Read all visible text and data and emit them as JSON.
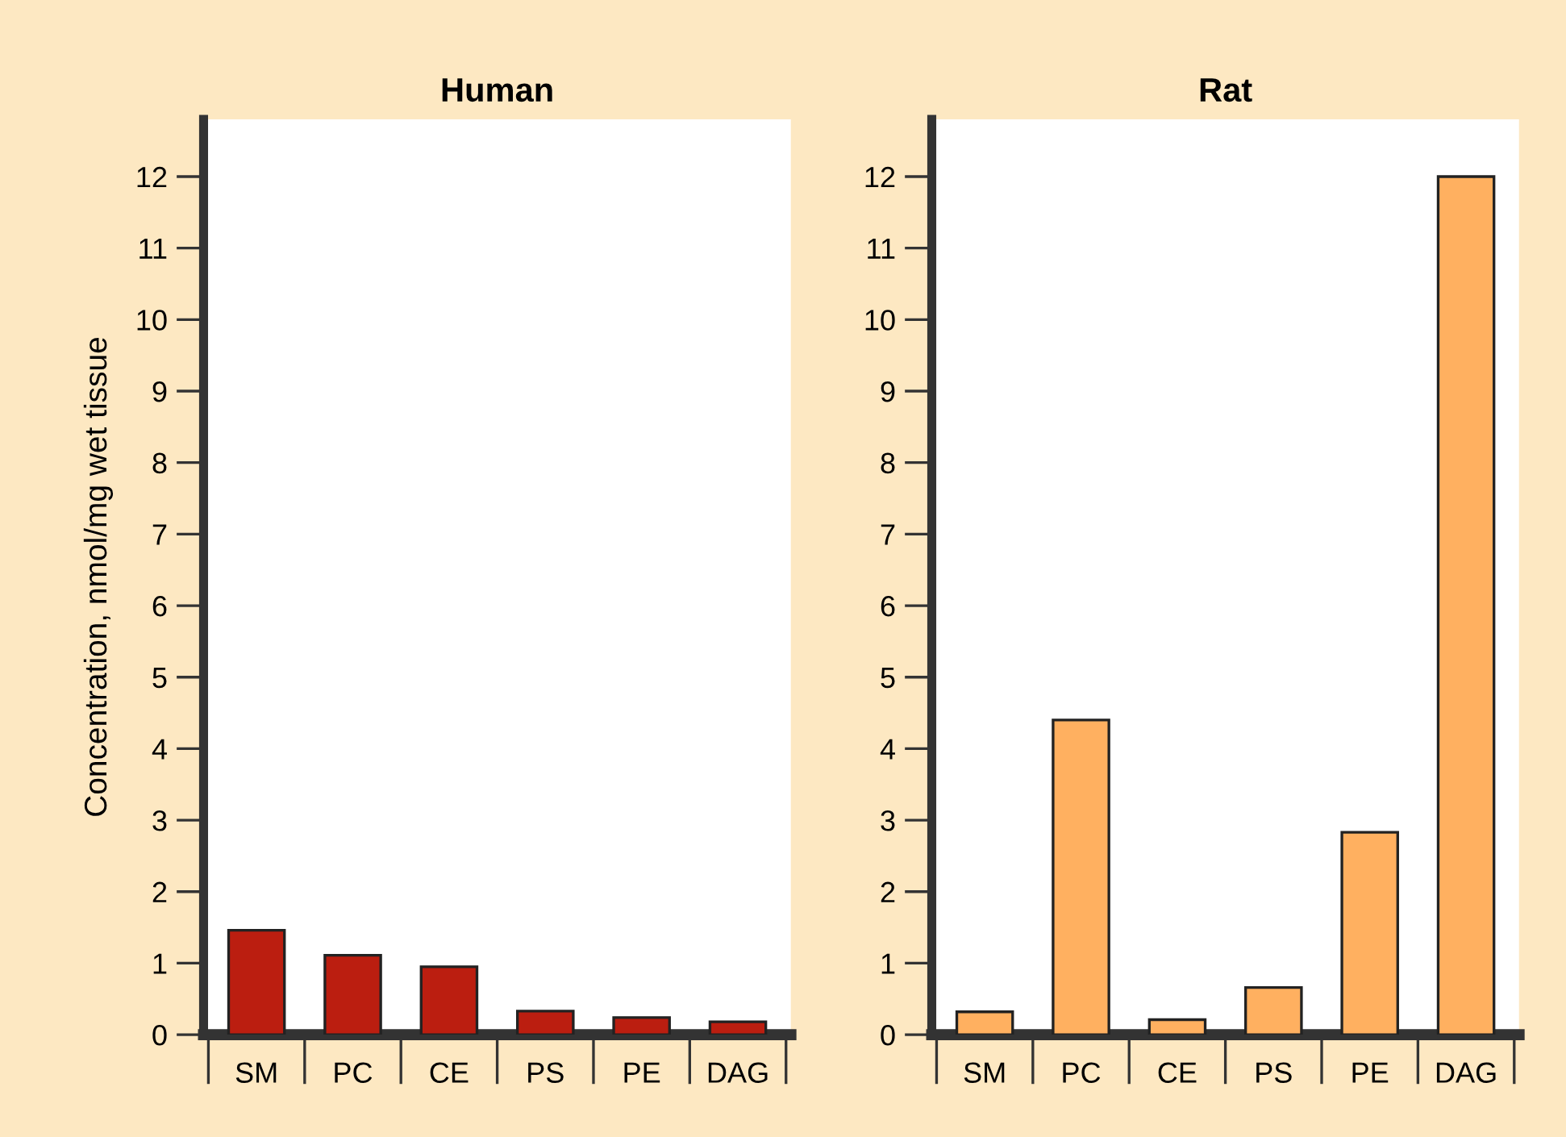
{
  "chart_data": [
    {
      "type": "bar",
      "title": "Human",
      "ylabel": "Concentration, nmol/mg wet tissue",
      "categories": [
        "SM",
        "PC",
        "CE",
        "PS",
        "PE",
        "DAG"
      ],
      "values": [
        1.46,
        1.11,
        0.95,
        0.33,
        0.24,
        0.18
      ],
      "color": "#bb1e10",
      "ylim": [
        0,
        12.8
      ],
      "yticks": [
        0,
        1,
        2,
        3,
        4,
        5,
        6,
        7,
        8,
        9,
        10,
        11,
        12
      ],
      "grid": false
    },
    {
      "type": "bar",
      "title": "Rat",
      "categories": [
        "SM",
        "PC",
        "CE",
        "PS",
        "PE",
        "DAG"
      ],
      "values": [
        0.32,
        4.4,
        0.21,
        0.66,
        2.83,
        12.0
      ],
      "color": "#ffb060",
      "ylim": [
        0,
        12.8
      ],
      "yticks": [
        0,
        1,
        2,
        3,
        4,
        5,
        6,
        7,
        8,
        9,
        10,
        11,
        12
      ],
      "grid": false
    }
  ]
}
